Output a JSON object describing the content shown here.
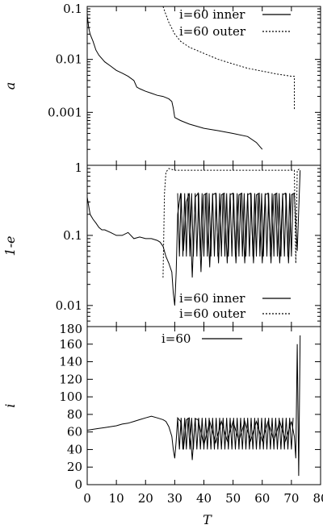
{
  "chart_data": [
    {
      "type": "line",
      "ylabel": "a",
      "yscale": "log",
      "ylim": [
        0.0001,
        0.1
      ],
      "xlim": [
        0,
        80
      ],
      "yticks": [
        "0.1",
        "0.01",
        "0.001"
      ],
      "grid": false,
      "legend_position": "top-right",
      "series": [
        {
          "name": "i=60 inner",
          "style": "solid",
          "x": [
            0,
            0.5,
            1,
            2,
            3,
            4,
            6,
            8,
            10,
            12,
            14,
            16,
            17,
            18,
            20,
            22,
            24,
            26,
            28,
            29,
            29.5,
            30,
            32,
            35,
            40,
            45,
            50,
            55,
            58,
            60
          ],
          "y": [
            0.07,
            0.04,
            0.03,
            0.022,
            0.015,
            0.012,
            0.009,
            0.0075,
            0.0062,
            0.0055,
            0.0048,
            0.004,
            0.003,
            0.0028,
            0.0025,
            0.0023,
            0.0021,
            0.002,
            0.0018,
            0.0016,
            0.0012,
            0.0008,
            0.0007,
            0.0006,
            0.0005,
            0.00045,
            0.0004,
            0.00035,
            0.00027,
            0.0002
          ]
        },
        {
          "name": "i=60 outer",
          "style": "dotted",
          "x": [
            26,
            27,
            28,
            30,
            32,
            35,
            40,
            45,
            50,
            55,
            60,
            65,
            68,
            70,
            71,
            71,
            71
          ],
          "y": [
            0.1,
            0.07,
            0.05,
            0.03,
            0.022,
            0.017,
            0.013,
            0.01,
            0.0082,
            0.0068,
            0.006,
            0.0053,
            0.005,
            0.0048,
            0.0048,
            0.003,
            0.0011
          ]
        }
      ]
    },
    {
      "type": "line",
      "ylabel": "1-e",
      "yscale": "log",
      "ylim": [
        0.005,
        1
      ],
      "xlim": [
        0,
        80
      ],
      "yticks": [
        "1",
        "0.1",
        "0.01"
      ],
      "grid": false,
      "legend_position": "bottom-right",
      "series": [
        {
          "name": "i=60 inner",
          "style": "solid",
          "oscillation": {
            "start_x": 31,
            "end_x": 71,
            "period": 1.2,
            "upper": 0.4,
            "lower": 0.05
          },
          "x": [
            0,
            1,
            2,
            3,
            4,
            5,
            6,
            8,
            10,
            12,
            14,
            16,
            18,
            20,
            22,
            24,
            25,
            26,
            27,
            28,
            29,
            29.5,
            30,
            30.5,
            31,
            32,
            33,
            34,
            35,
            36,
            37,
            38,
            39,
            40,
            41,
            42,
            43,
            44,
            45,
            46,
            47,
            48,
            49,
            50,
            51,
            52,
            53,
            54,
            55,
            56,
            57,
            58,
            59,
            60,
            61,
            62,
            63,
            64,
            65,
            66,
            67,
            68,
            69,
            70,
            71,
            72,
            73
          ],
          "y": [
            0.35,
            0.2,
            0.17,
            0.15,
            0.13,
            0.12,
            0.12,
            0.11,
            0.1,
            0.1,
            0.11,
            0.09,
            0.095,
            0.09,
            0.09,
            0.085,
            0.08,
            0.07,
            0.05,
            0.04,
            0.03,
            0.015,
            0.01,
            0.03,
            0.2,
            0.4,
            0.06,
            0.3,
            0.4,
            0.025,
            0.35,
            0.4,
            0.03,
            0.38,
            0.4,
            0.035,
            0.38,
            0.4,
            0.04,
            0.38,
            0.4,
            0.04,
            0.38,
            0.4,
            0.04,
            0.38,
            0.4,
            0.04,
            0.38,
            0.4,
            0.04,
            0.38,
            0.4,
            0.04,
            0.38,
            0.4,
            0.04,
            0.38,
            0.4,
            0.04,
            0.38,
            0.4,
            0.04,
            0.38,
            0.4,
            0.06,
            0.85
          ]
        },
        {
          "name": "i=60 outer",
          "style": "dotted",
          "x": [
            26,
            26.5,
            27,
            28,
            30,
            35,
            40,
            45,
            50,
            55,
            60,
            65,
            70,
            71,
            71.5,
            72,
            73
          ],
          "y": [
            0.025,
            0.4,
            0.8,
            0.9,
            0.85,
            0.85,
            0.85,
            0.85,
            0.85,
            0.85,
            0.85,
            0.85,
            0.85,
            0.85,
            0.04,
            0.85,
            0.9
          ]
        }
      ]
    },
    {
      "type": "line",
      "ylabel": "i",
      "xlabel": "T",
      "ylim": [
        0,
        180
      ],
      "xlim": [
        0,
        80
      ],
      "yticks": [
        "0",
        "20",
        "40",
        "60",
        "80",
        "100",
        "120",
        "140",
        "160",
        "180"
      ],
      "xticks": [
        "0",
        "10",
        "20",
        "30",
        "40",
        "50",
        "60",
        "70",
        "80"
      ],
      "grid": false,
      "legend_position": "top-center",
      "series": [
        {
          "name": "i=60",
          "style": "solid",
          "oscillation": {
            "start_x": 31,
            "end_x": 71,
            "period": 1.2,
            "upper": 76,
            "lower": 40
          },
          "x": [
            0,
            2,
            4,
            6,
            8,
            10,
            12,
            14,
            16,
            18,
            20,
            22,
            24,
            26,
            27,
            28,
            29,
            29.5,
            30,
            30.5,
            31,
            32,
            33,
            34,
            35,
            36,
            37,
            38,
            40,
            42,
            44,
            46,
            48,
            50,
            52,
            54,
            56,
            58,
            60,
            62,
            64,
            66,
            68,
            70,
            71,
            71.5,
            72,
            72.5,
            73
          ],
          "y": [
            62,
            63,
            64,
            65,
            66,
            67,
            69,
            70,
            72,
            74,
            76,
            78,
            76,
            74,
            72,
            66,
            55,
            40,
            30,
            50,
            76,
            72,
            40,
            74,
            76,
            28,
            75,
            74,
            45,
            72,
            48,
            72,
            50,
            72,
            50,
            72,
            50,
            72,
            50,
            72,
            50,
            72,
            50,
            72,
            55,
            30,
            160,
            10,
            170
          ]
        }
      ]
    }
  ]
}
